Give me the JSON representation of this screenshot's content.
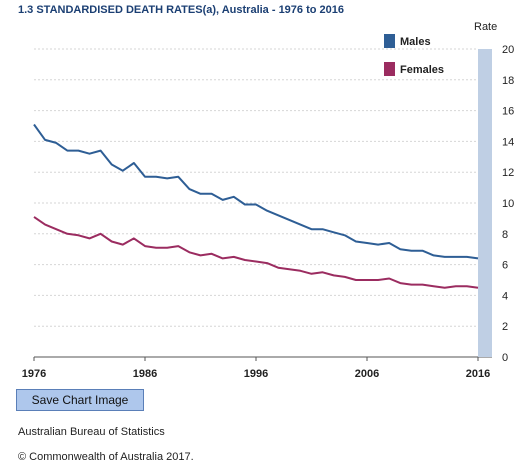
{
  "title": "1.3 STANDARDISED DEATH RATES(a), Australia - 1976 to 2016",
  "save_button_label": "Save Chart Image",
  "source": "Australian Bureau of Statistics",
  "copyright": "© Commonwealth of Australia 2017.",
  "chart_data": {
    "type": "line",
    "title": "1.3 STANDARDISED DEATH RATES(a), Australia - 1976 to 2016",
    "ylabel": "Rate",
    "xlabel": "",
    "xlim": [
      1976,
      2016
    ],
    "ylim": [
      0,
      20
    ],
    "x_ticks": [
      "1976",
      "1986",
      "1996",
      "2006",
      "2016"
    ],
    "y_ticks": [
      "0",
      "2",
      "4",
      "6",
      "8",
      "10",
      "12",
      "14",
      "16",
      "18",
      "20"
    ],
    "grid": true,
    "legend_position": "top-right",
    "x": [
      1976,
      1977,
      1978,
      1979,
      1980,
      1981,
      1982,
      1983,
      1984,
      1985,
      1986,
      1987,
      1988,
      1989,
      1990,
      1991,
      1992,
      1993,
      1994,
      1995,
      1996,
      1997,
      1998,
      1999,
      2000,
      2001,
      2002,
      2003,
      2004,
      2005,
      2006,
      2007,
      2008,
      2009,
      2010,
      2011,
      2012,
      2013,
      2014,
      2015,
      2016
    ],
    "series": [
      {
        "name": "Males",
        "color": "#2e5e95",
        "values": [
          15.1,
          14.1,
          13.9,
          13.4,
          13.4,
          13.2,
          13.4,
          12.5,
          12.1,
          12.6,
          11.7,
          11.7,
          11.6,
          11.7,
          10.9,
          10.6,
          10.6,
          10.2,
          10.4,
          9.9,
          9.9,
          9.5,
          9.2,
          8.9,
          8.6,
          8.3,
          8.3,
          8.1,
          7.9,
          7.5,
          7.4,
          7.3,
          7.4,
          7.0,
          6.9,
          6.9,
          6.6,
          6.5,
          6.5,
          6.5,
          6.4
        ]
      },
      {
        "name": "Females",
        "color": "#9b2c60",
        "values": [
          9.1,
          8.6,
          8.3,
          8.0,
          7.9,
          7.7,
          8.0,
          7.5,
          7.3,
          7.7,
          7.2,
          7.1,
          7.1,
          7.2,
          6.8,
          6.6,
          6.7,
          6.4,
          6.5,
          6.3,
          6.2,
          6.1,
          5.8,
          5.7,
          5.6,
          5.4,
          5.5,
          5.3,
          5.2,
          5.0,
          5.0,
          5.0,
          5.1,
          4.8,
          4.7,
          4.7,
          4.6,
          4.5,
          4.6,
          4.6,
          4.5
        ]
      }
    ]
  }
}
